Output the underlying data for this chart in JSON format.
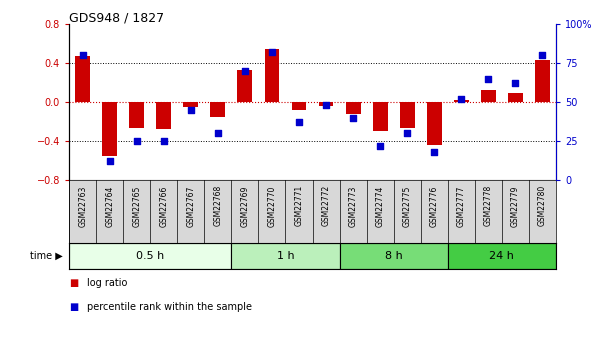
{
  "title": "GDS948 / 1827",
  "samples": [
    "GSM22763",
    "GSM22764",
    "GSM22765",
    "GSM22766",
    "GSM22767",
    "GSM22768",
    "GSM22769",
    "GSM22770",
    "GSM22771",
    "GSM22772",
    "GSM22773",
    "GSM22774",
    "GSM22775",
    "GSM22776",
    "GSM22777",
    "GSM22778",
    "GSM22779",
    "GSM22780"
  ],
  "log_ratio": [
    0.47,
    -0.55,
    -0.27,
    -0.28,
    -0.05,
    -0.15,
    0.33,
    0.55,
    -0.08,
    -0.04,
    -0.12,
    -0.3,
    -0.27,
    -0.44,
    0.02,
    0.12,
    0.09,
    0.43
  ],
  "percentile": [
    80,
    12,
    25,
    25,
    45,
    30,
    70,
    82,
    37,
    48,
    40,
    22,
    30,
    18,
    52,
    65,
    62,
    80
  ],
  "groups": [
    {
      "label": "0.5 h",
      "start": 0,
      "end": 6,
      "color": "#e8ffe8"
    },
    {
      "label": "1 h",
      "start": 6,
      "end": 10,
      "color": "#bbf0bb"
    },
    {
      "label": "8 h",
      "start": 10,
      "end": 14,
      "color": "#77dd77"
    },
    {
      "label": "24 h",
      "start": 14,
      "end": 18,
      "color": "#44cc44"
    }
  ],
  "ylim": [
    -0.8,
    0.8
  ],
  "yticks_left": [
    -0.8,
    -0.4,
    0.0,
    0.4,
    0.8
  ],
  "yticks_right": [
    0,
    25,
    50,
    75,
    100
  ],
  "bar_color": "#cc0000",
  "dot_color": "#0000cc",
  "bg_color": "#ffffff",
  "zero_line_color": "#cc0000",
  "grid_color": "#000000",
  "sample_bg_color": "#d8d8d8",
  "bar_width": 0.55,
  "dot_size": 22,
  "legend_log_ratio_color": "#cc0000",
  "legend_percentile_color": "#0000cc"
}
